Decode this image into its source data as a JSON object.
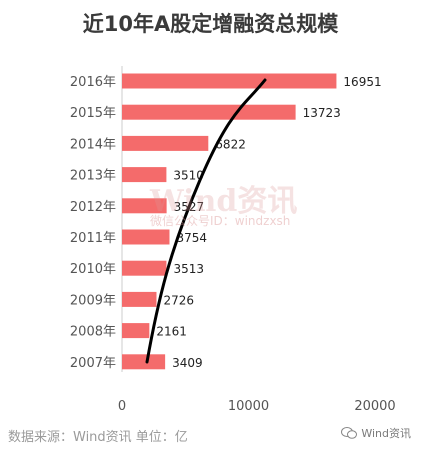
{
  "header": {
    "title": "近10年A股定增融资总规模"
  },
  "footer": {
    "source": "数据来源：Wind资讯  单位：亿",
    "brand": "Wind资讯"
  },
  "watermark": {
    "text": "Wind资讯",
    "sub": "微信公众号ID：windzxsh"
  },
  "colors": {
    "bar": "#f46b6b",
    "line": "#000000",
    "axis_text": "#555555"
  },
  "chart_data": {
    "type": "bar",
    "orientation": "horizontal",
    "title": "近10年A股定增融资总规模",
    "categories": [
      "2016年",
      "2015年",
      "2014年",
      "2013年",
      "2012年",
      "2011年",
      "2010年",
      "2009年",
      "2008年",
      "2007年"
    ],
    "values": [
      16951,
      13723,
      6822,
      3510,
      3527,
      3754,
      3513,
      2726,
      2161,
      3409
    ],
    "xlim": [
      0,
      20000
    ],
    "xticks": [
      0,
      10000,
      20000
    ],
    "grid": false,
    "annotation": "hand-drawn rising curve"
  }
}
